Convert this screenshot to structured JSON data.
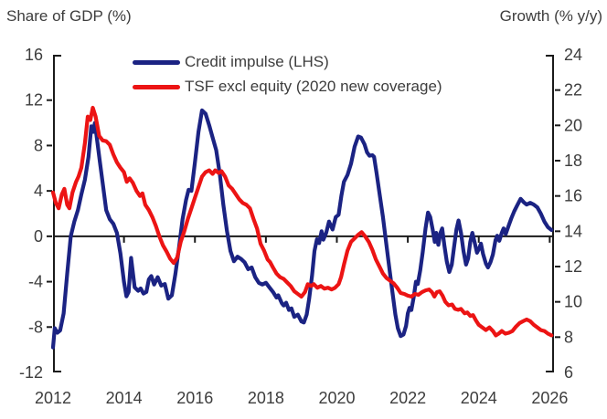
{
  "titles": {
    "left": "Share of GDP (%)",
    "right": "Growth (% y/y)"
  },
  "legend": {
    "items": [
      {
        "label": "Credit impulse (LHS)"
      },
      {
        "label": "TSF excl equity (2020 new coverage)"
      }
    ]
  },
  "chart_data": {
    "type": "line",
    "title": "",
    "axis_color": "#1a1a1a",
    "text_color": "#3d3d3d",
    "grid": false,
    "zero_line": true,
    "legend_position": "top-center",
    "left_axis": {
      "title": "Share of GDP (%)",
      "min": -12,
      "max": 16,
      "ticks": [
        16,
        12,
        8,
        4,
        0,
        -4,
        -8,
        -12
      ]
    },
    "right_axis": {
      "title": "Growth (% y/y)",
      "min": 6,
      "max": 24,
      "ticks": [
        24,
        22,
        20,
        18,
        16,
        14,
        12,
        10,
        8,
        6
      ]
    },
    "x_axis": {
      "min": 2012,
      "max": 2026.12,
      "tick_years": [
        2012,
        2014,
        2016,
        2018,
        2020,
        2022,
        2024,
        2026
      ]
    },
    "series": [
      {
        "name": "Credit impulse (LHS)",
        "axis": "left",
        "color": "#1b2383",
        "x": [
          2012.0,
          2012.05,
          2012.12,
          2012.2,
          2012.3,
          2012.4,
          2012.5,
          2012.6,
          2012.7,
          2012.8,
          2012.9,
          2013.0,
          2013.08,
          2013.13,
          2013.18,
          2013.25,
          2013.32,
          2013.4,
          2013.5,
          2013.6,
          2013.7,
          2013.8,
          2013.9,
          2014.0,
          2014.07,
          2014.13,
          2014.2,
          2014.3,
          2014.4,
          2014.47,
          2014.55,
          2014.63,
          2014.7,
          2014.77,
          2014.85,
          2014.95,
          2015.05,
          2015.15,
          2015.25,
          2015.35,
          2015.45,
          2015.55,
          2015.65,
          2015.75,
          2015.82,
          2015.9,
          2016.0,
          2016.1,
          2016.2,
          2016.3,
          2016.4,
          2016.5,
          2016.6,
          2016.7,
          2016.8,
          2016.9,
          2017.0,
          2017.1,
          2017.2,
          2017.3,
          2017.4,
          2017.5,
          2017.6,
          2017.7,
          2017.8,
          2017.9,
          2018.0,
          2018.1,
          2018.2,
          2018.3,
          2018.35,
          2018.45,
          2018.5,
          2018.57,
          2018.65,
          2018.72,
          2018.8,
          2018.9,
          2019.0,
          2019.07,
          2019.15,
          2019.22,
          2019.3,
          2019.37,
          2019.44,
          2019.5,
          2019.57,
          2019.62,
          2019.7,
          2019.78,
          2019.88,
          2019.97,
          2020.05,
          2020.13,
          2020.2,
          2020.3,
          2020.4,
          2020.5,
          2020.6,
          2020.68,
          2020.78,
          2020.85,
          2020.92,
          2021.0,
          2021.05,
          2021.12,
          2021.2,
          2021.3,
          2021.38,
          2021.46,
          2021.55,
          2021.65,
          2021.72,
          2021.8,
          2021.88,
          2021.95,
          2022.0,
          2022.05,
          2022.1,
          2022.17,
          2022.23,
          2022.28,
          2022.35,
          2022.42,
          2022.5,
          2022.57,
          2022.63,
          2022.7,
          2022.76,
          2022.8,
          2022.86,
          2022.92,
          2022.97,
          2023.03,
          2023.1,
          2023.17,
          2023.24,
          2023.3,
          2023.37,
          2023.43,
          2023.5,
          2023.57,
          2023.64,
          2023.7,
          2023.76,
          2023.82,
          2023.88,
          2023.95,
          2024.02,
          2024.06,
          2024.12,
          2024.2,
          2024.26,
          2024.33,
          2024.4,
          2024.47,
          2024.52,
          2024.58,
          2024.65,
          2024.7,
          2024.76,
          2024.85,
          2024.92,
          2025.0,
          2025.08,
          2025.18,
          2025.27,
          2025.35,
          2025.45,
          2025.55,
          2025.65,
          2025.75,
          2025.85,
          2025.95,
          2026.05
        ],
        "values": [
          -9.8,
          -8.1,
          -8.5,
          -8.3,
          -6.8,
          -3.3,
          0,
          1.3,
          2.3,
          3.7,
          5,
          7,
          9.7,
          9.2,
          10,
          8.3,
          6.6,
          4.7,
          2.3,
          1.5,
          1.1,
          0.3,
          -1.5,
          -4,
          -5.3,
          -4.9,
          -1.9,
          -4.5,
          -4.8,
          -4.6,
          -5.05,
          -4.9,
          -3.8,
          -3.5,
          -4.25,
          -3.6,
          -4.35,
          -4.2,
          -5.5,
          -5.2,
          -3.3,
          -1,
          1.5,
          3.2,
          4.1,
          4,
          6.5,
          9.2,
          11.1,
          10.8,
          9.8,
          8.7,
          7.6,
          5.5,
          2.8,
          0.5,
          -1.3,
          -2.2,
          -1.8,
          -2,
          -2.3,
          -2.9,
          -2.75,
          -3.6,
          -4.1,
          -4.25,
          -4.1,
          -4.5,
          -4.9,
          -5.4,
          -5.2,
          -5.9,
          -6.1,
          -5.85,
          -6.5,
          -6.35,
          -7.1,
          -6.9,
          -7.5,
          -7.6,
          -6.9,
          -5.5,
          -3.5,
          -1.3,
          -0.25,
          -0.6,
          0.45,
          -0.3,
          0.3,
          1.3,
          0.6,
          1.7,
          1.9,
          3.6,
          4.8,
          5.4,
          6.4,
          7.9,
          8.8,
          8.7,
          8.1,
          7.4,
          7.1,
          7.15,
          7,
          5.6,
          3.8,
          1.7,
          -0.3,
          -2.3,
          -4.5,
          -6.9,
          -8.1,
          -8.8,
          -8.65,
          -7.9,
          -6.8,
          -6.3,
          -6.5,
          -5.3,
          -4,
          -4.2,
          -3,
          -1.4,
          0.7,
          2.1,
          1.7,
          0.6,
          -0.5,
          0.3,
          -0.75,
          0.3,
          0.7,
          -0.8,
          -2.25,
          -3.15,
          -2.5,
          -1,
          0.6,
          1.4,
          0.3,
          -1.3,
          -2.5,
          -1.95,
          -0.5,
          0.3,
          -0.5,
          -1.45,
          -1,
          -0.65,
          -1.55,
          -2.4,
          -2.75,
          -2.3,
          -1.6,
          -0.35,
          0.05,
          -0.4,
          0.3,
          0.7,
          0.2,
          1,
          1.6,
          2.2,
          2.7,
          3.3,
          3,
          2.8,
          2.95,
          2.8,
          2.55,
          2,
          1.3,
          0.8,
          0.55
        ]
      },
      {
        "name": "TSF excl equity (2020 new coverage)",
        "axis": "right",
        "color": "#ec1414",
        "x": [
          2012.0,
          2012.08,
          2012.16,
          2012.25,
          2012.32,
          2012.4,
          2012.46,
          2012.55,
          2012.65,
          2012.72,
          2012.8,
          2012.9,
          2012.98,
          2013.05,
          2013.12,
          2013.2,
          2013.3,
          2013.4,
          2013.5,
          2013.6,
          2013.7,
          2013.8,
          2013.9,
          2014.0,
          2014.08,
          2014.16,
          2014.25,
          2014.35,
          2014.45,
          2014.52,
          2014.6,
          2014.7,
          2014.8,
          2014.9,
          2015.0,
          2015.1,
          2015.2,
          2015.3,
          2015.4,
          2015.5,
          2015.6,
          2015.7,
          2015.8,
          2015.9,
          2016.0,
          2016.1,
          2016.2,
          2016.3,
          2016.4,
          2016.5,
          2016.57,
          2016.67,
          2016.75,
          2016.85,
          2016.95,
          2017.05,
          2017.15,
          2017.25,
          2017.35,
          2017.45,
          2017.55,
          2017.65,
          2017.75,
          2017.85,
          2017.95,
          2018.05,
          2018.12,
          2018.2,
          2018.3,
          2018.4,
          2018.5,
          2018.6,
          2018.7,
          2018.8,
          2018.9,
          2019.0,
          2019.1,
          2019.18,
          2019.27,
          2019.35,
          2019.45,
          2019.55,
          2019.65,
          2019.75,
          2019.85,
          2019.95,
          2020.05,
          2020.12,
          2020.2,
          2020.3,
          2020.4,
          2020.5,
          2020.6,
          2020.7,
          2020.8,
          2020.9,
          2021.0,
          2021.1,
          2021.2,
          2021.3,
          2021.4,
          2021.5,
          2021.6,
          2021.7,
          2021.8,
          2021.9,
          2022.0,
          2022.1,
          2022.2,
          2022.3,
          2022.4,
          2022.5,
          2022.6,
          2022.68,
          2022.75,
          2022.82,
          2022.9,
          2022.98,
          2023.06,
          2023.15,
          2023.25,
          2023.33,
          2023.42,
          2023.5,
          2023.6,
          2023.68,
          2023.76,
          2023.84,
          2023.92,
          2024.0,
          2024.1,
          2024.2,
          2024.3,
          2024.4,
          2024.48,
          2024.56,
          2024.65,
          2024.75,
          2024.85,
          2024.95,
          2025.05,
          2025.15,
          2025.25,
          2025.35,
          2025.45,
          2025.55,
          2025.65,
          2025.75,
          2025.85,
          2025.95,
          2026.05
        ],
        "values": [
          16.2,
          15.6,
          15.3,
          16.1,
          16.4,
          15.5,
          15.3,
          16.2,
          16.8,
          17.1,
          17.6,
          19,
          20.5,
          20.3,
          21,
          20.5,
          19.4,
          19.15,
          19.1,
          18.9,
          18.35,
          17.9,
          17.6,
          17.35,
          16.8,
          17,
          16.75,
          16.3,
          16,
          16.15,
          15.5,
          15.2,
          14.8,
          14.3,
          13.7,
          13.2,
          12.85,
          12.45,
          12.2,
          12.5,
          13.4,
          14,
          14.7,
          15.3,
          15.9,
          16.5,
          17.1,
          17.35,
          17.45,
          17.25,
          17.45,
          17.3,
          17.4,
          17.1,
          16.6,
          16.4,
          16.1,
          15.8,
          15.6,
          15.5,
          15.3,
          14.7,
          14.15,
          13.3,
          12.9,
          12.4,
          12.25,
          11.95,
          11.6,
          11.4,
          11.3,
          11.1,
          10.9,
          10.6,
          10.45,
          10.3,
          10.55,
          11,
          10.9,
          11,
          10.8,
          10.9,
          10.75,
          10.8,
          10.7,
          10.8,
          11,
          11.4,
          12.1,
          12.9,
          13.4,
          13.6,
          13.8,
          13.95,
          13.7,
          13.4,
          12.95,
          12.4,
          12,
          11.6,
          11.35,
          11.2,
          11.05,
          10.8,
          10.5,
          10.45,
          10.35,
          10.3,
          10.45,
          10.4,
          10.55,
          10.65,
          10.7,
          10.55,
          10.3,
          10.55,
          10.6,
          10.35,
          10,
          9.8,
          9.85,
          9.6,
          9.55,
          9.6,
          9.35,
          9.4,
          9.2,
          9.25,
          8.95,
          8.7,
          8.55,
          8.4,
          8.55,
          8.35,
          8.1,
          8.2,
          8.35,
          8.2,
          8.25,
          8.35,
          8.6,
          8.8,
          8.9,
          9,
          8.9,
          8.7,
          8.55,
          8.4,
          8.35,
          8.2,
          8.1
        ]
      }
    ]
  }
}
